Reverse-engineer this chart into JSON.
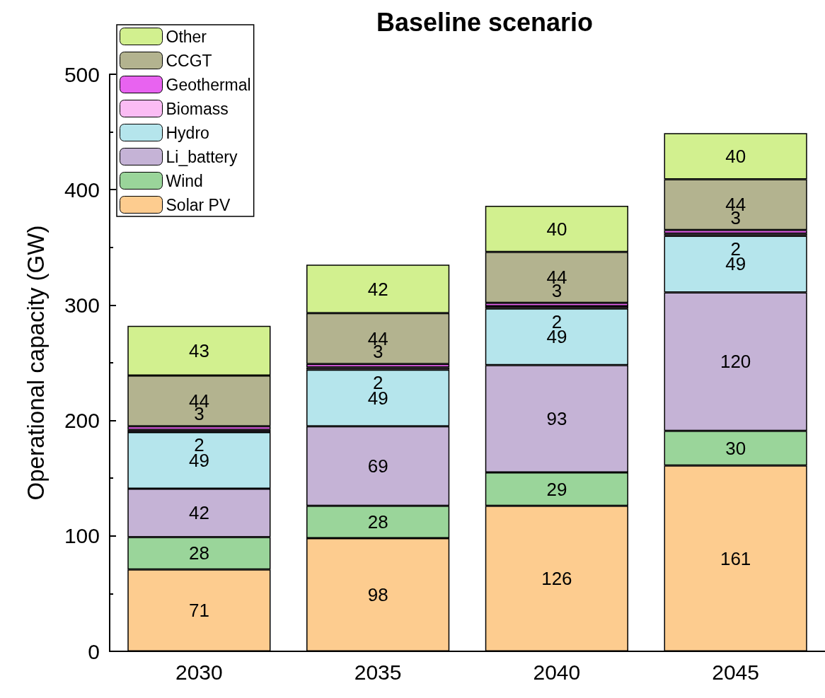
{
  "chart_data": {
    "type": "bar",
    "title": "Baseline scenario",
    "ylabel": "Operational capacity (GW)",
    "categories": [
      "2030",
      "2035",
      "2040",
      "2045"
    ],
    "stacked": true,
    "data_labels": true,
    "grid": false,
    "legend": "top left",
    "ylim": [
      0,
      500
    ],
    "yticks": [
      0,
      100,
      200,
      300,
      400,
      500
    ],
    "series": [
      {
        "name": "Solar PV",
        "color": "#fdcc8f",
        "values": [
          71,
          98,
          126,
          161
        ]
      },
      {
        "name": "Wind",
        "color": "#9ad59a",
        "values": [
          28,
          28,
          29,
          30
        ]
      },
      {
        "name": "Li_battery",
        "color": "#c5b3d6",
        "values": [
          42,
          69,
          93,
          120
        ]
      },
      {
        "name": "Hydro",
        "color": "#b5e5ec",
        "values": [
          49,
          49,
          49,
          49
        ]
      },
      {
        "name": "Biomass",
        "color": "#fbbcf4",
        "values": [
          2,
          2,
          2,
          2
        ]
      },
      {
        "name": "Geothermal",
        "color": "#e863f0",
        "values": [
          3,
          3,
          3,
          3
        ]
      },
      {
        "name": "CCGT",
        "color": "#b3b38f",
        "values": [
          44,
          44,
          44,
          44
        ]
      },
      {
        "name": "Other",
        "color": "#d2f08f",
        "values": [
          43,
          42,
          40,
          40
        ]
      }
    ]
  }
}
